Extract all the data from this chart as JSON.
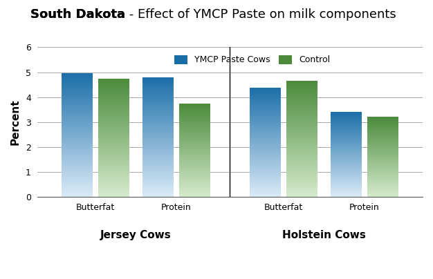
{
  "title_bold": "South Dakota",
  "title_rest": " - Effect of YMCP Paste on milk components",
  "ylabel": "Percent",
  "ylim": [
    0,
    6
  ],
  "yticks": [
    0,
    1,
    2,
    3,
    4,
    5,
    6
  ],
  "groups": [
    {
      "label": "Butterfat",
      "group_label": "Jersey Cows",
      "ymcp": 4.95,
      "control": 4.75
    },
    {
      "label": "Protein",
      "group_label": "Jersey Cows",
      "ymcp": 4.8,
      "control": 3.75
    },
    {
      "label": "Butterfat",
      "group_label": "Holstein Cows",
      "ymcp": 4.38,
      "control": 4.65
    },
    {
      "label": "Protein",
      "group_label": "Holstein Cows",
      "ymcp": 3.4,
      "control": 3.22
    }
  ],
  "color_ymcp_top": "#1a6ea8",
  "color_ymcp_bottom": "#daeaf7",
  "color_control_top": "#4a8a3a",
  "color_control_bottom": "#d4eacc",
  "bar_width": 0.35,
  "positions": [
    0.0,
    0.9,
    2.1,
    3.0
  ],
  "legend_ymcp": "YMCP Paste Cows",
  "legend_control": "Control",
  "jersey_label": "Jersey Cows",
  "holstein_label": "Holstein Cows",
  "background_color": "#ffffff",
  "grid_color": "#aaaaaa"
}
